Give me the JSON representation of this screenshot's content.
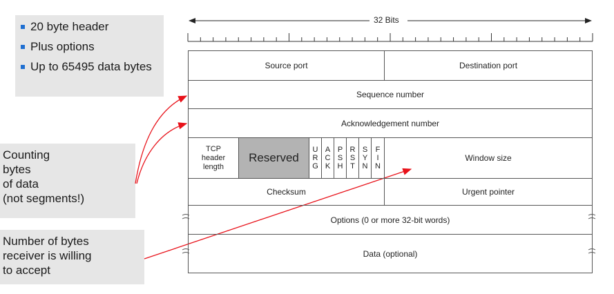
{
  "bullets": [
    "20 byte header",
    "Plus options",
    "Up to 65495 data bytes"
  ],
  "note_counting": [
    "Counting",
    "bytes",
    "of data",
    "(not segments!)"
  ],
  "note_window": [
    "Number of bytes",
    "receiver is willing",
    "to accept"
  ],
  "ruler_label": "32 Bits",
  "fields": {
    "source_port": "Source port",
    "destination_port": "Destination port",
    "sequence_number": "Sequence number",
    "acknowledgement_number": "Acknowledgement number",
    "tcp_header_length": [
      "TCP",
      "header",
      "length"
    ],
    "reserved": "Reserved",
    "flags": [
      [
        "U",
        "R",
        "G"
      ],
      [
        "A",
        "C",
        "K"
      ],
      [
        "P",
        "S",
        "H"
      ],
      [
        "R",
        "S",
        "T"
      ],
      [
        "S",
        "Y",
        "N"
      ],
      [
        "F",
        "I",
        "N"
      ]
    ],
    "window_size": "Window size",
    "checksum": "Checksum",
    "urgent_pointer": "Urgent pointer",
    "options": "Options (0 or more 32-bit words)",
    "data": "Data (optional)"
  },
  "colors": {
    "arrow": "#e8121a",
    "bullet": "#1f6fd1",
    "reserved_fill": "#b3b3b3",
    "callout_bg": "#e6e6e6"
  }
}
